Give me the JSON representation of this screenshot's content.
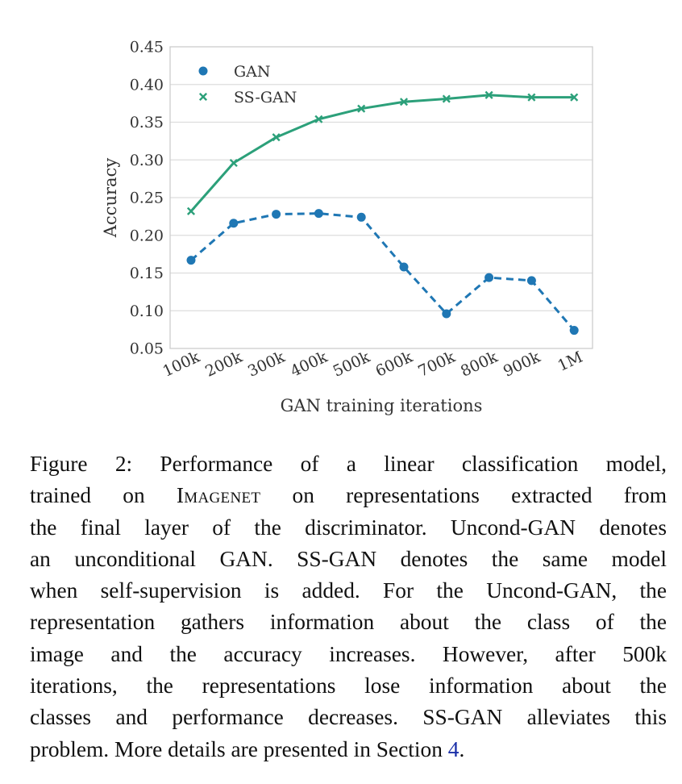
{
  "chart_data": {
    "type": "line",
    "title": "",
    "xlabel": "GAN training iterations",
    "ylabel": "Accuracy",
    "categories": [
      "100k",
      "200k",
      "300k",
      "400k",
      "500k",
      "600k",
      "700k",
      "800k",
      "900k",
      "1M"
    ],
    "ylim": [
      0.05,
      0.45
    ],
    "yticks": [
      "0.05",
      "0.10",
      "0.15",
      "0.20",
      "0.25",
      "0.30",
      "0.35",
      "0.40",
      "0.45"
    ],
    "ytick_values": [
      0.05,
      0.1,
      0.15,
      0.2,
      0.25,
      0.3,
      0.35,
      0.4,
      0.45
    ],
    "grid": true,
    "legend_position": "top-left",
    "series": [
      {
        "name": "GAN",
        "marker": "circle",
        "line_style": "dashed",
        "color": "#1f77b4",
        "values": [
          0.167,
          0.216,
          0.228,
          0.229,
          0.224,
          0.158,
          0.096,
          0.144,
          0.14,
          0.074
        ]
      },
      {
        "name": "SS-GAN",
        "marker": "x",
        "line_style": "solid",
        "color": "#2ca07a",
        "values": [
          0.232,
          0.296,
          0.33,
          0.354,
          0.368,
          0.377,
          0.381,
          0.386,
          0.383,
          0.383
        ]
      }
    ]
  },
  "caption": {
    "lines": [
      {
        "parts": [
          "Figure 2:  Performance of a linear classification model,"
        ]
      },
      {
        "parts": [
          "trained on ",
          "IMAGENET",
          " on representations extracted from"
        ],
        "smallcaps_index": 1
      },
      {
        "parts": [
          "the final layer of the discriminator. Uncond-GAN denotes"
        ]
      },
      {
        "parts": [
          "an unconditional GAN. SS-GAN denotes the same model"
        ]
      },
      {
        "parts": [
          "when self-supervision is added. For the Uncond-GAN, the"
        ]
      },
      {
        "parts": [
          "representation gathers information about the class of the"
        ]
      },
      {
        "parts": [
          "image and the accuracy increases.  However, after 500k"
        ]
      },
      {
        "parts": [
          "iterations, the representations lose information about the"
        ]
      },
      {
        "parts": [
          "classes and performance decreases. SS-GAN alleviates this"
        ]
      },
      {
        "parts": [
          "problem. More details are presented in Section ",
          "4",
          "."
        ],
        "ref_index": 1
      }
    ]
  }
}
